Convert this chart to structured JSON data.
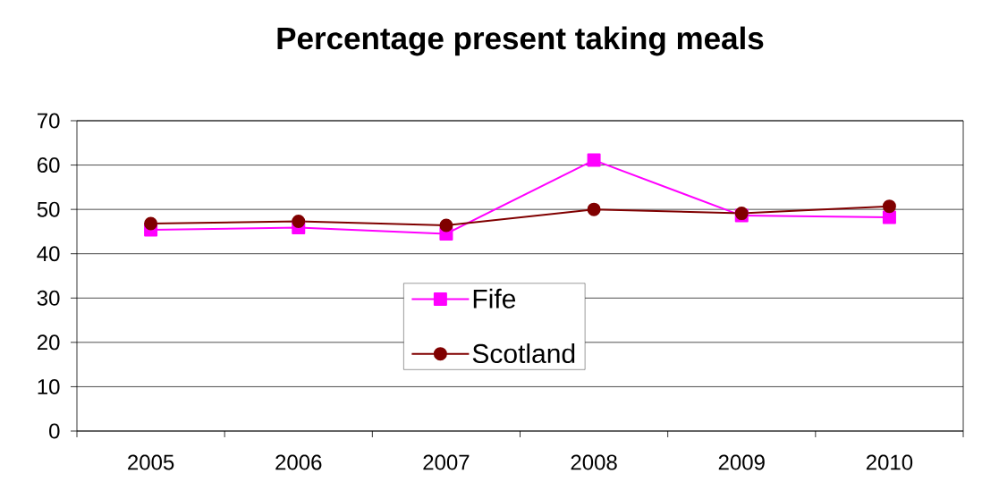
{
  "chart_data": {
    "type": "line",
    "title": "Percentage present taking meals",
    "categories": [
      "2005",
      "2006",
      "2007",
      "2008",
      "2009",
      "2010"
    ],
    "series": [
      {
        "name": "Fife",
        "color": "#ff00ff",
        "marker": "square",
        "values": [
          45.4,
          45.9,
          44.5,
          61.1,
          48.6,
          48.2
        ]
      },
      {
        "name": "Scotland",
        "color": "#800000",
        "marker": "circle",
        "values": [
          46.8,
          47.3,
          46.4,
          50.0,
          49.1,
          50.7
        ]
      }
    ],
    "ylim": [
      0,
      70
    ],
    "yticks": [
      0,
      10,
      20,
      30,
      40,
      50,
      60,
      70
    ],
    "grid": "y",
    "legend": "center"
  }
}
